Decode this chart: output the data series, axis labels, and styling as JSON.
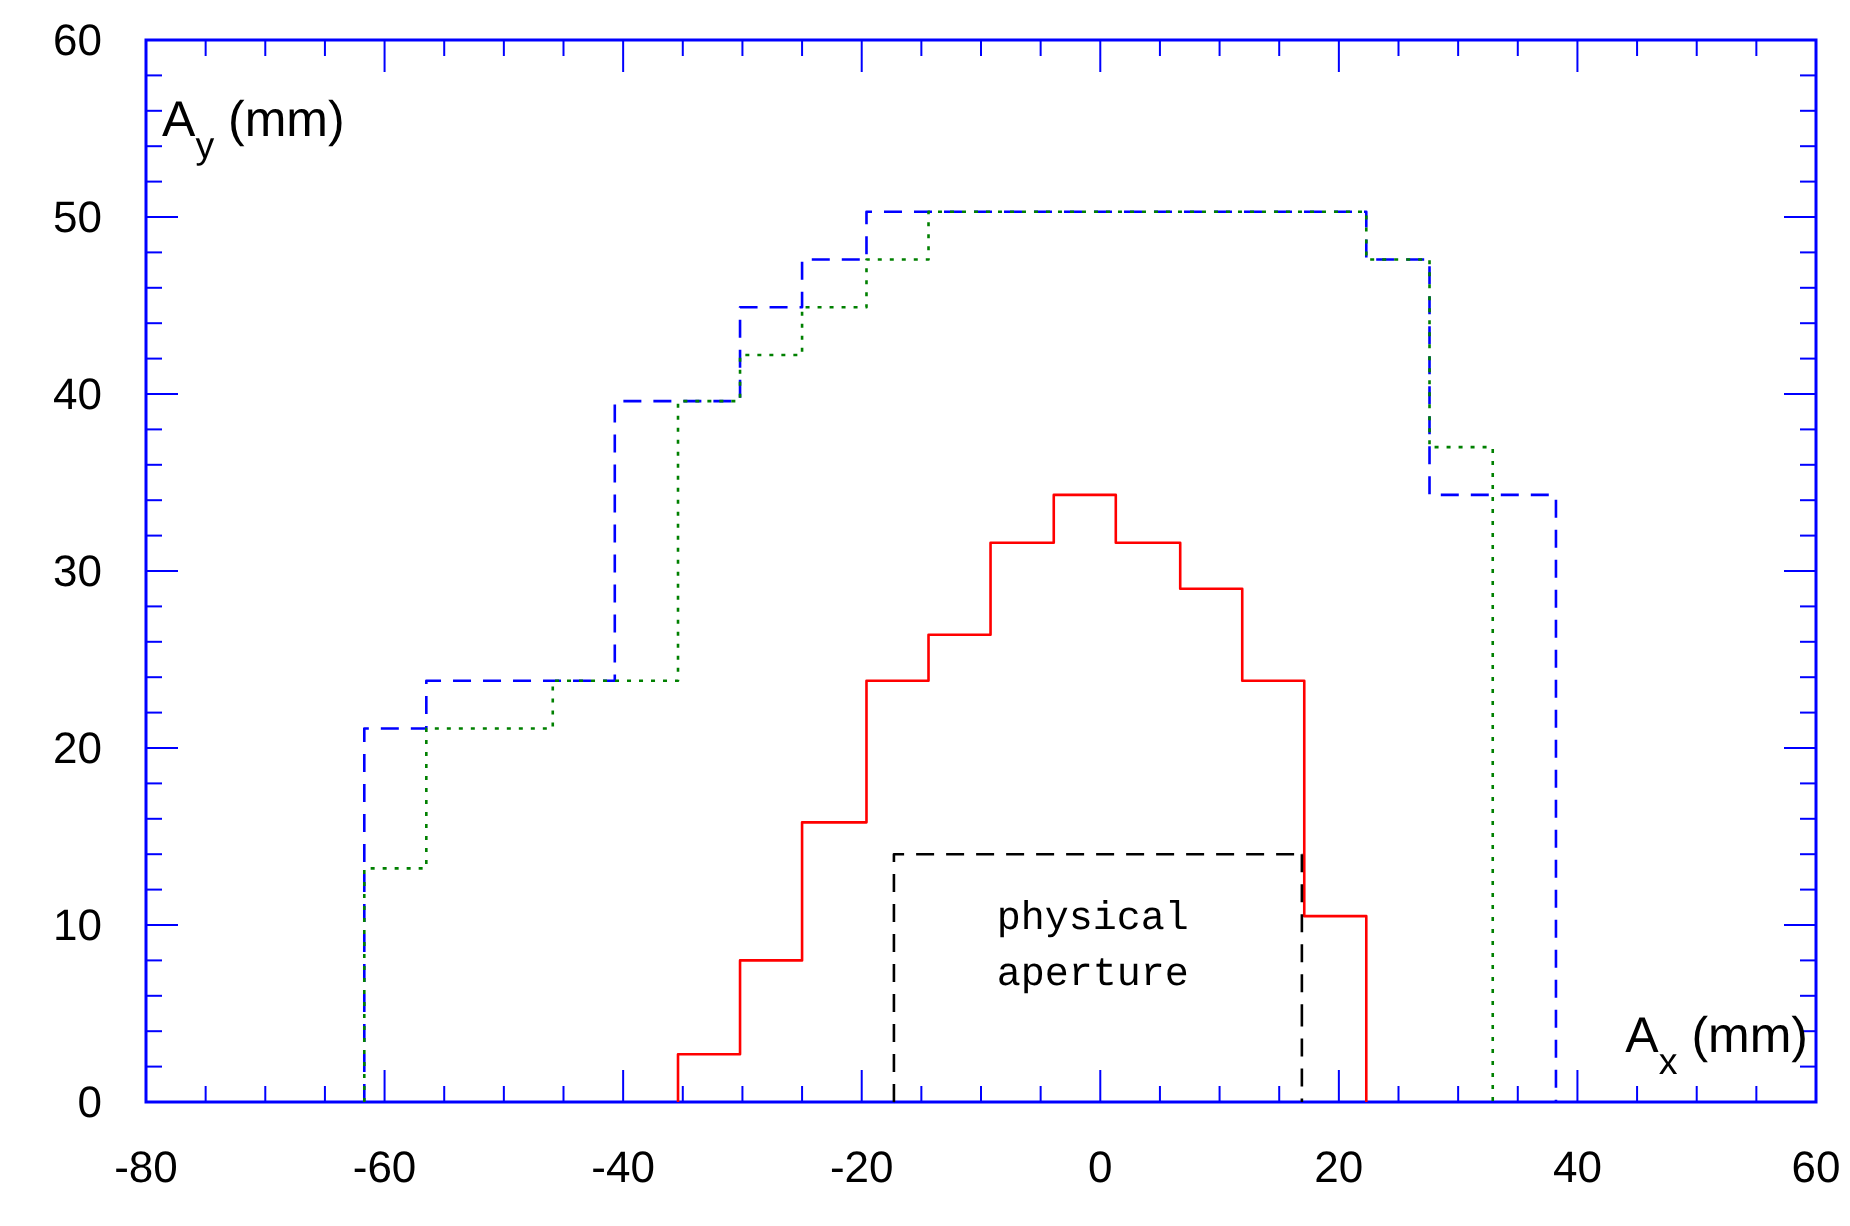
{
  "chart_data": {
    "type": "step",
    "xlabel": "A$_{x}$(mm)",
    "ylabel": "A$_{y}$(mm)",
    "xlim": [
      -80,
      60
    ],
    "ylim": [
      0,
      60
    ],
    "xticks": [
      -80,
      {
        "value": -75,
        "label": null
      },
      {
        "value": -70,
        "label": null
      },
      {
        "value": -65,
        "label": null
      },
      -60,
      {
        "value": -55,
        "label": null
      },
      {
        "value": -50,
        "label": null
      },
      {
        "value": -45,
        "label": null
      },
      -40,
      {
        "value": -35,
        "label": null
      },
      {
        "value": -30,
        "label": null
      },
      {
        "value": -25,
        "label": null
      },
      -20,
      {
        "value": -15,
        "label": null
      },
      {
        "value": -10,
        "label": null
      },
      {
        "value": -5,
        "label": null
      },
      0,
      {
        "value": 5,
        "label": null
      },
      {
        "value": 10,
        "label": null
      },
      {
        "value": 15,
        "label": null
      },
      20,
      {
        "value": 25,
        "label": null
      },
      {
        "value": 30,
        "label": null
      },
      {
        "value": 35,
        "label": null
      },
      40,
      {
        "value": 45,
        "label": null
      },
      {
        "value": 50,
        "label": null
      },
      {
        "value": 55,
        "label": null
      },
      60
    ],
    "yticks": [
      0,
      {
        "value": 2,
        "label": null
      },
      {
        "value": 4,
        "label": null
      },
      {
        "value": 6,
        "label": null
      },
      {
        "value": 8,
        "label": null
      },
      10,
      {
        "value": 12,
        "label": null
      },
      {
        "value": 14,
        "label": null
      },
      {
        "value": 16,
        "label": null
      },
      {
        "value": 18,
        "label": null
      },
      20,
      {
        "value": 22,
        "label": null
      },
      {
        "value": 24,
        "label": null
      },
      {
        "value": 26,
        "label": null
      },
      {
        "value": 28,
        "label": null
      },
      30,
      {
        "value": 32,
        "label": null
      },
      {
        "value": 34,
        "label": null
      },
      {
        "value": 36,
        "label": null
      },
      {
        "value": 38,
        "label": null
      },
      40,
      {
        "value": 42,
        "label": null
      },
      {
        "value": 44,
        "label": null
      },
      {
        "value": 46,
        "label": null
      },
      {
        "value": 48,
        "label": null
      },
      50,
      {
        "value": 52,
        "label": null
      },
      {
        "value": 54,
        "label": null
      },
      {
        "value": 56,
        "label": null
      },
      {
        "value": 58,
        "label": null
      },
      60
    ],
    "grid": false,
    "marker": "none",
    "series": [
      {
        "color": "#0000ff",
        "line_style": "dashed",
        "x": [
          -61.7,
          -61.7,
          -56.5,
          -40.7,
          -30.2,
          -25.0,
          -19.6,
          22.3,
          27.6,
          38.2
        ],
        "values": [
          0,
          21.1,
          23.8,
          39.6,
          44.9,
          47.6,
          50.3,
          47.6,
          34.3,
          0
        ]
      },
      {
        "color": "#008000",
        "line_style": "dotted",
        "x": [
          -61.7,
          -61.7,
          -56.5,
          -45.9,
          -35.4,
          -30.2,
          -25.0,
          -19.6,
          -14.4,
          22.3,
          27.6,
          32.9
        ],
        "values": [
          0,
          13.2,
          21.1,
          23.8,
          39.6,
          42.2,
          44.9,
          47.6,
          50.3,
          47.6,
          37.0,
          0
        ]
      },
      {
        "color": "#ff0000",
        "line_style": "solid",
        "x": [
          -35.4,
          -35.4,
          -30.2,
          -25.0,
          -19.6,
          -14.4,
          -9.2,
          -3.9,
          1.3,
          6.7,
          11.9,
          17.1,
          22.3
        ],
        "values": [
          0,
          2.7,
          8.0,
          15.8,
          23.8,
          26.4,
          31.6,
          34.3,
          31.6,
          29.0,
          23.8,
          10.5,
          0
        ]
      },
      {
        "color": "#000000",
        "line_style": "dashed",
        "x": [
          -17.3,
          -17.3,
          16.9,
          16.9
        ],
        "values": [
          0,
          14,
          14,
          0
        ]
      }
    ],
    "annotations": [
      "physical\naperture"
    ]
  }
}
